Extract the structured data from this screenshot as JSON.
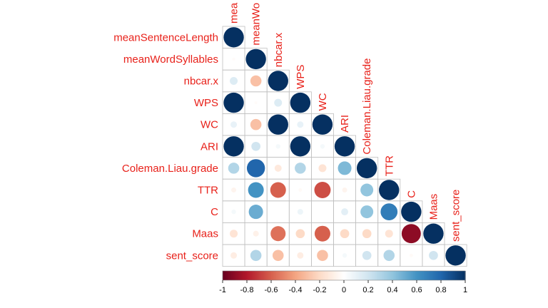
{
  "chart_data": {
    "type": "heatmap",
    "style": "correlation-circles-lower-triangle",
    "variables": [
      "meanSentenceLength",
      "meanWordSyllables",
      "nbcar.x",
      "WPS",
      "WC",
      "ARI",
      "Coleman.Liau.grade",
      "TTR",
      "C",
      "Maas",
      "sent_score"
    ],
    "column_labels": [
      "mea",
      "meanWo",
      "nbcar.x",
      "WPS",
      "WC",
      "ARI",
      "Coleman.Liau.grade",
      "TTR",
      "C",
      "Maas",
      "sent_score"
    ],
    "matrix": [
      [
        1.0
      ],
      [
        -0.02,
        1.0
      ],
      [
        0.15,
        -0.3,
        1.0
      ],
      [
        1.0,
        -0.02,
        0.15,
        1.0
      ],
      [
        0.1,
        -0.3,
        1.0,
        0.1,
        1.0
      ],
      [
        1.0,
        0.2,
        0.05,
        1.0,
        0.05,
        1.0
      ],
      [
        0.3,
        0.8,
        -0.12,
        0.3,
        -0.15,
        0.45,
        1.0
      ],
      [
        -0.06,
        0.6,
        -0.6,
        -0.03,
        -0.65,
        -0.06,
        0.4,
        1.0
      ],
      [
        0.05,
        0.5,
        0.0,
        0.08,
        0.0,
        0.12,
        0.4,
        0.7,
        1.0
      ],
      [
        -0.15,
        -0.08,
        -0.55,
        -0.2,
        -0.6,
        -0.2,
        -0.2,
        -0.15,
        -0.9,
        1.0
      ],
      [
        -0.1,
        0.3,
        -0.3,
        -0.1,
        -0.3,
        0.05,
        0.2,
        0.3,
        -0.03,
        0.2,
        1.0
      ]
    ],
    "color_scale": {
      "stops": [
        "#67001f",
        "#b2182b",
        "#d6604d",
        "#f4a582",
        "#fddbc7",
        "#ffffff",
        "#d1e5f0",
        "#92c5de",
        "#4393c3",
        "#2166ac",
        "#053061"
      ],
      "domain": [
        -1,
        1
      ]
    },
    "colorbar_ticks": [
      "-1",
      "-0.8",
      "-0.6",
      "-0.4",
      "-0.2",
      "0",
      "0.2",
      "0.4",
      "0.6",
      "0.8",
      "1"
    ],
    "colorbar_tick_values": [
      -1,
      -0.8,
      -0.6,
      -0.4,
      -0.2,
      0,
      0.2,
      0.4,
      0.6,
      0.8,
      1
    ],
    "label_color": "#e8211a",
    "grid_color": "#bfbfbf"
  }
}
